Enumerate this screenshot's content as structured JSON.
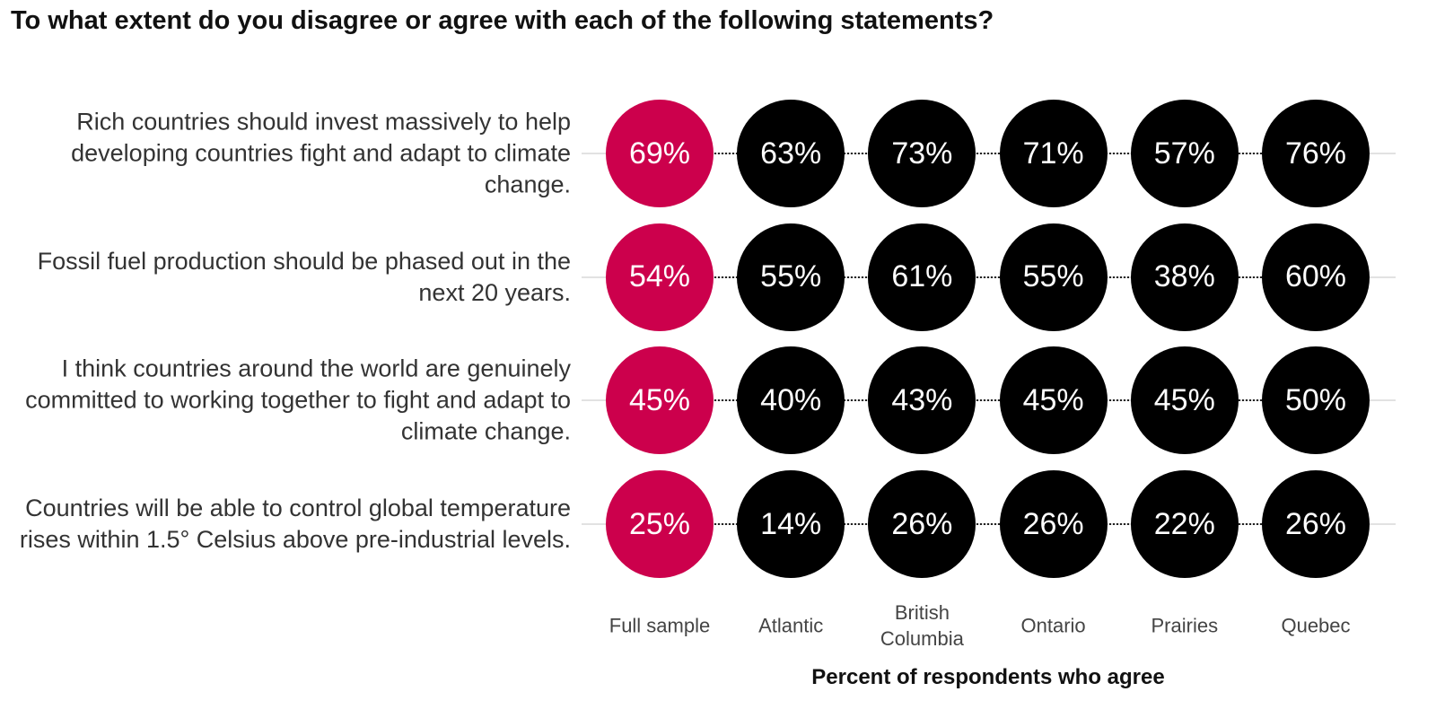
{
  "chart_data": {
    "type": "dots",
    "title": "To what extent do you disagree or agree with each of the following statements?",
    "x_label": "Percent of respondents who agree",
    "categories": [
      "Rich countries should invest massively to help developing countries fight and adapt to climate change.",
      "Fossil fuel production should be phased out in the next 20 years.",
      "I think countries around the world are genuinely committed to working together to fight and adapt to climate change.",
      "Countries will be able to control global temperature rises within 1.5° Celsius above pre-industrial levels."
    ],
    "series": [
      {
        "name": "Full sample",
        "color": "#cc004c",
        "values": [
          69,
          54,
          45,
          25
        ],
        "value_labels": [
          "69%",
          "54%",
          "45%",
          "25%"
        ]
      },
      {
        "name": "Atlantic",
        "color": "#000000",
        "values": [
          63,
          55,
          40,
          14
        ],
        "value_labels": [
          "63%",
          "55%",
          "40%",
          "14%"
        ]
      },
      {
        "name": "British Columbia",
        "color": "#000000",
        "values": [
          73,
          61,
          43,
          26
        ],
        "value_labels": [
          "73%",
          "61%",
          "43%",
          "26%"
        ]
      },
      {
        "name": "Ontario",
        "color": "#000000",
        "values": [
          71,
          55,
          45,
          26
        ],
        "value_labels": [
          "71%",
          "55%",
          "45%",
          "26%"
        ]
      },
      {
        "name": "Prairies",
        "color": "#000000",
        "values": [
          57,
          38,
          45,
          22
        ],
        "value_labels": [
          "57%",
          "38%",
          "45%",
          "22%"
        ]
      },
      {
        "name": "Quebec",
        "color": "#000000",
        "values": [
          76,
          60,
          50,
          26
        ],
        "value_labels": [
          "76%",
          "60%",
          "50%",
          "26%"
        ]
      }
    ]
  }
}
